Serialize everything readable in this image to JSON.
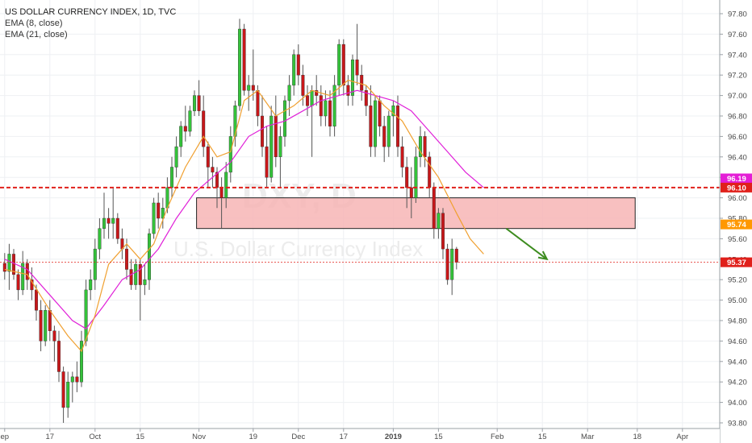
{
  "chart_data": {
    "type": "candlestick",
    "title": "US DOLLAR CURRENCY INDEX, 1D, TVC",
    "indicators": [
      "EMA (8, close)",
      "EMA (21, close)"
    ],
    "watermark": {
      "symbol": "DXY, D",
      "name": "U.S. Dollar Currency Index"
    },
    "ylim": [
      93.8,
      97.9
    ],
    "y_ticks": [
      "97.80",
      "97.60",
      "97.40",
      "97.20",
      "97.00",
      "96.80",
      "96.60",
      "96.40",
      "96.20",
      "96.00",
      "95.80",
      "95.60",
      "95.40",
      "95.20",
      "95.00",
      "94.80",
      "94.60",
      "94.40",
      "94.20",
      "94.00",
      "93.80"
    ],
    "x_ticks": [
      {
        "label": "ep",
        "bar": 0
      },
      {
        "label": "17",
        "bar": 10
      },
      {
        "label": "Oct",
        "bar": 20
      },
      {
        "label": "15",
        "bar": 30
      },
      {
        "label": "Nov",
        "bar": 43
      },
      {
        "label": "19",
        "bar": 55
      },
      {
        "label": "Dec",
        "bar": 65
      },
      {
        "label": "17",
        "bar": 75
      },
      {
        "label": "2019",
        "bar": 86
      },
      {
        "label": "15",
        "bar": 96
      },
      {
        "label": "Feb",
        "bar": 109
      },
      {
        "label": "15",
        "bar": 119
      },
      {
        "label": "Mar",
        "bar": 129
      },
      {
        "label": "18",
        "bar": 140
      },
      {
        "label": "Apr",
        "bar": 150
      }
    ],
    "total_bars": 159,
    "candles": [
      [
        95.36,
        95.46,
        95.2,
        95.28
      ],
      [
        95.28,
        95.55,
        95.1,
        95.45
      ],
      [
        95.45,
        95.5,
        95.2,
        95.25
      ],
      [
        95.25,
        95.3,
        95.0,
        95.1
      ],
      [
        95.1,
        95.48,
        95.05,
        95.36
      ],
      [
        95.36,
        95.4,
        95.1,
        95.2
      ],
      [
        95.2,
        95.32,
        95.0,
        95.1
      ],
      [
        95.1,
        95.15,
        94.8,
        94.9
      ],
      [
        94.9,
        95.0,
        94.5,
        94.6
      ],
      [
        94.6,
        94.95,
        94.55,
        94.9
      ],
      [
        94.9,
        95.0,
        94.6,
        94.7
      ],
      [
        94.7,
        94.75,
        94.4,
        94.6
      ],
      [
        94.6,
        94.7,
        94.2,
        94.3
      ],
      [
        94.3,
        94.35,
        93.8,
        93.95
      ],
      [
        93.95,
        94.3,
        93.85,
        94.2
      ],
      [
        94.2,
        94.3,
        94.0,
        94.25
      ],
      [
        94.25,
        94.4,
        94.1,
        94.2
      ],
      [
        94.2,
        94.7,
        94.15,
        94.6
      ],
      [
        94.6,
        95.2,
        94.55,
        95.1
      ],
      [
        95.1,
        95.3,
        95.0,
        95.2
      ],
      [
        95.2,
        95.6,
        95.1,
        95.5
      ],
      [
        95.5,
        95.8,
        95.4,
        95.7
      ],
      [
        95.7,
        96.05,
        95.6,
        95.8
      ],
      [
        95.8,
        95.9,
        95.6,
        95.75
      ],
      [
        95.75,
        96.1,
        95.6,
        95.8
      ],
      [
        95.8,
        95.85,
        95.55,
        95.6
      ],
      [
        95.6,
        95.7,
        95.4,
        95.5
      ],
      [
        95.5,
        95.6,
        95.2,
        95.3
      ],
      [
        95.3,
        95.4,
        95.1,
        95.15
      ],
      [
        95.15,
        95.4,
        95.1,
        95.35
      ],
      [
        95.35,
        95.4,
        94.8,
        95.15
      ],
      [
        95.15,
        95.35,
        95.05,
        95.2
      ],
      [
        95.2,
        95.7,
        95.1,
        95.65
      ],
      [
        95.65,
        96.0,
        95.6,
        95.95
      ],
      [
        95.95,
        96.05,
        95.7,
        95.8
      ],
      [
        95.8,
        96.0,
        95.7,
        95.9
      ],
      [
        95.9,
        96.2,
        95.85,
        96.1
      ],
      [
        96.1,
        96.4,
        96.0,
        96.3
      ],
      [
        96.3,
        96.6,
        96.2,
        96.5
      ],
      [
        96.5,
        96.75,
        96.4,
        96.7
      ],
      [
        96.7,
        96.9,
        96.55,
        96.65
      ],
      [
        96.65,
        96.9,
        96.6,
        96.85
      ],
      [
        96.85,
        97.05,
        96.8,
        97.0
      ],
      [
        97.0,
        97.15,
        96.8,
        96.85
      ],
      [
        96.85,
        97.0,
        96.4,
        96.5
      ],
      [
        96.5,
        96.55,
        96.1,
        96.3
      ],
      [
        96.3,
        96.4,
        96.1,
        96.25
      ],
      [
        96.25,
        96.3,
        95.9,
        96.1
      ],
      [
        96.1,
        96.2,
        95.7,
        96.0
      ],
      [
        96.0,
        96.35,
        95.9,
        96.25
      ],
      [
        96.25,
        96.7,
        96.15,
        96.6
      ],
      [
        96.6,
        96.95,
        96.5,
        96.9
      ],
      [
        96.9,
        97.75,
        96.85,
        97.65
      ],
      [
        97.65,
        97.7,
        97.0,
        97.05
      ],
      [
        97.05,
        97.2,
        96.85,
        97.1
      ],
      [
        97.1,
        97.45,
        96.95,
        97.05
      ],
      [
        97.05,
        97.1,
        96.7,
        96.8
      ],
      [
        96.8,
        97.0,
        96.4,
        96.5
      ],
      [
        96.5,
        96.7,
        96.1,
        96.2
      ],
      [
        96.2,
        96.9,
        96.15,
        96.8
      ],
      [
        96.8,
        97.0,
        96.3,
        96.4
      ],
      [
        96.4,
        96.7,
        96.1,
        96.6
      ],
      [
        96.6,
        97.0,
        96.5,
        96.95
      ],
      [
        96.95,
        97.2,
        96.8,
        97.1
      ],
      [
        97.1,
        97.45,
        97.0,
        97.4
      ],
      [
        97.4,
        97.5,
        97.1,
        97.2
      ],
      [
        97.2,
        97.3,
        96.9,
        97.0
      ],
      [
        97.0,
        97.1,
        96.8,
        96.9
      ],
      [
        96.9,
        97.1,
        96.4,
        97.05
      ],
      [
        97.05,
        97.2,
        96.9,
        97.0
      ],
      [
        97.0,
        97.1,
        96.7,
        96.8
      ],
      [
        96.8,
        97.05,
        96.7,
        96.95
      ],
      [
        96.95,
        97.05,
        96.6,
        96.7
      ],
      [
        96.7,
        97.2,
        96.6,
        97.1
      ],
      [
        97.1,
        97.55,
        97.0,
        97.5
      ],
      [
        97.5,
        97.55,
        97.0,
        97.1
      ],
      [
        97.1,
        97.2,
        96.9,
        97.0
      ],
      [
        97.0,
        97.4,
        96.9,
        97.35
      ],
      [
        97.35,
        97.7,
        97.1,
        97.2
      ],
      [
        97.2,
        97.3,
        96.95,
        97.05
      ],
      [
        97.05,
        97.1,
        96.8,
        96.9
      ],
      [
        96.9,
        97.1,
        96.4,
        96.5
      ],
      [
        96.5,
        97.0,
        96.4,
        96.95
      ],
      [
        96.95,
        97.0,
        96.6,
        96.7
      ],
      [
        96.7,
        96.8,
        96.35,
        96.5
      ],
      [
        96.5,
        96.85,
        96.4,
        96.8
      ],
      [
        96.8,
        96.95,
        96.6,
        96.9
      ],
      [
        96.9,
        97.0,
        96.4,
        96.5
      ],
      [
        96.5,
        96.6,
        96.2,
        96.3
      ],
      [
        96.3,
        96.4,
        95.9,
        96.1
      ],
      [
        96.1,
        96.3,
        95.8,
        96.0
      ],
      [
        96.0,
        96.5,
        95.95,
        96.4
      ],
      [
        96.4,
        96.7,
        96.3,
        96.6
      ],
      [
        96.6,
        96.65,
        96.3,
        96.4
      ],
      [
        96.4,
        96.45,
        96.0,
        96.1
      ],
      [
        96.1,
        96.15,
        95.6,
        95.7
      ],
      [
        95.7,
        95.9,
        95.6,
        95.85
      ],
      [
        95.85,
        95.9,
        95.4,
        95.5
      ],
      [
        95.5,
        95.55,
        95.15,
        95.2
      ],
      [
        95.2,
        95.6,
        95.05,
        95.5
      ],
      [
        95.5,
        95.52,
        95.3,
        95.37
      ]
    ],
    "ema8": [
      [
        0,
        95.3
      ],
      [
        5,
        95.25
      ],
      [
        10,
        94.9
      ],
      [
        14,
        94.65
      ],
      [
        17,
        94.5
      ],
      [
        20,
        94.85
      ],
      [
        23,
        95.35
      ],
      [
        27,
        95.55
      ],
      [
        30,
        95.4
      ],
      [
        33,
        95.55
      ],
      [
        36,
        95.9
      ],
      [
        40,
        96.3
      ],
      [
        44,
        96.6
      ],
      [
        47,
        96.4
      ],
      [
        50,
        96.45
      ],
      [
        53,
        96.95
      ],
      [
        56,
        97.05
      ],
      [
        60,
        96.8
      ],
      [
        64,
        96.9
      ],
      [
        68,
        97.05
      ],
      [
        72,
        97.0
      ],
      [
        76,
        97.15
      ],
      [
        80,
        97.1
      ],
      [
        84,
        96.9
      ],
      [
        88,
        96.75
      ],
      [
        92,
        96.45
      ],
      [
        96,
        96.2
      ],
      [
        100,
        95.85
      ],
      [
        103,
        95.6
      ],
      [
        106,
        95.45
      ]
    ],
    "ema21": [
      [
        0,
        95.4
      ],
      [
        5,
        95.3
      ],
      [
        10,
        95.05
      ],
      [
        15,
        94.8
      ],
      [
        18,
        94.72
      ],
      [
        22,
        94.95
      ],
      [
        26,
        95.2
      ],
      [
        30,
        95.3
      ],
      [
        34,
        95.5
      ],
      [
        38,
        95.8
      ],
      [
        42,
        96.05
      ],
      [
        46,
        96.2
      ],
      [
        50,
        96.35
      ],
      [
        54,
        96.6
      ],
      [
        58,
        96.7
      ],
      [
        62,
        96.75
      ],
      [
        66,
        96.85
      ],
      [
        70,
        96.95
      ],
      [
        74,
        97.0
      ],
      [
        78,
        97.05
      ],
      [
        82,
        97.0
      ],
      [
        86,
        96.95
      ],
      [
        90,
        96.85
      ],
      [
        94,
        96.65
      ],
      [
        98,
        96.45
      ],
      [
        102,
        96.25
      ],
      [
        106,
        96.1
      ]
    ],
    "zone": {
      "bar_start": 43,
      "bar_end": 139,
      "top": 96.0,
      "bottom": 95.7
    },
    "resistance_line": 96.1,
    "last_price_line": 95.37,
    "arrow": {
      "from_bar": 111,
      "from_price": 95.7,
      "to_bar": 120,
      "to_price": 95.4
    },
    "price_labels": [
      {
        "text": "96.19",
        "value": 96.19,
        "color": "#e41ed6"
      },
      {
        "text": "96.10",
        "value": 96.1,
        "color": "#e0201b"
      },
      {
        "text": "95.74",
        "value": 95.74,
        "color": "#ff9800"
      },
      {
        "text": "95.37",
        "value": 95.37,
        "color": "#e0201b"
      }
    ],
    "colors": {
      "up": "#34c23a",
      "down": "#c8171a",
      "ema8": "#f0a030",
      "ema21": "#e020d8",
      "zone": "#f7b5b5",
      "resistance": "#e0201b",
      "arrow": "#3d8c1f"
    }
  }
}
